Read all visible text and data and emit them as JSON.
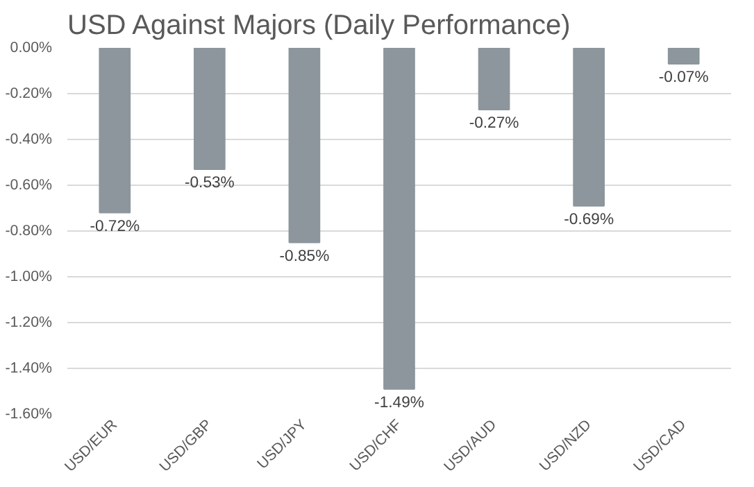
{
  "chart_data": {
    "type": "bar",
    "title": "USD Against Majors (Daily Performance)",
    "categories": [
      "USD/EUR",
      "USD/GBP",
      "USD/JPY",
      "USD/CHF",
      "USD/AUD",
      "USD/NZD",
      "USD/CAD"
    ],
    "values": [
      -0.72,
      -0.53,
      -0.85,
      -1.49,
      -0.27,
      -0.69,
      -0.07
    ],
    "value_labels": [
      "-0.72%",
      "-0.53%",
      "-0.85%",
      "-1.49%",
      "-0.27%",
      "-0.69%",
      "-0.07%"
    ],
    "color": "#8c969c",
    "ylim": [
      -1.6,
      0
    ],
    "yticks": [
      {
        "value": 0,
        "label": "0.00%"
      },
      {
        "value": -0.2,
        "label": "-0.20%"
      },
      {
        "value": -0.4,
        "label": "-0.40%"
      },
      {
        "value": -0.6,
        "label": "-0.60%"
      },
      {
        "value": -0.8,
        "label": "-0.80%"
      },
      {
        "value": -1.0,
        "label": "-1.00%"
      },
      {
        "value": -1.2,
        "label": "-1.20%"
      },
      {
        "value": -1.4,
        "label": "-1.40%"
      },
      {
        "value": -1.6,
        "label": "-1.60%"
      }
    ],
    "grid": "y"
  }
}
